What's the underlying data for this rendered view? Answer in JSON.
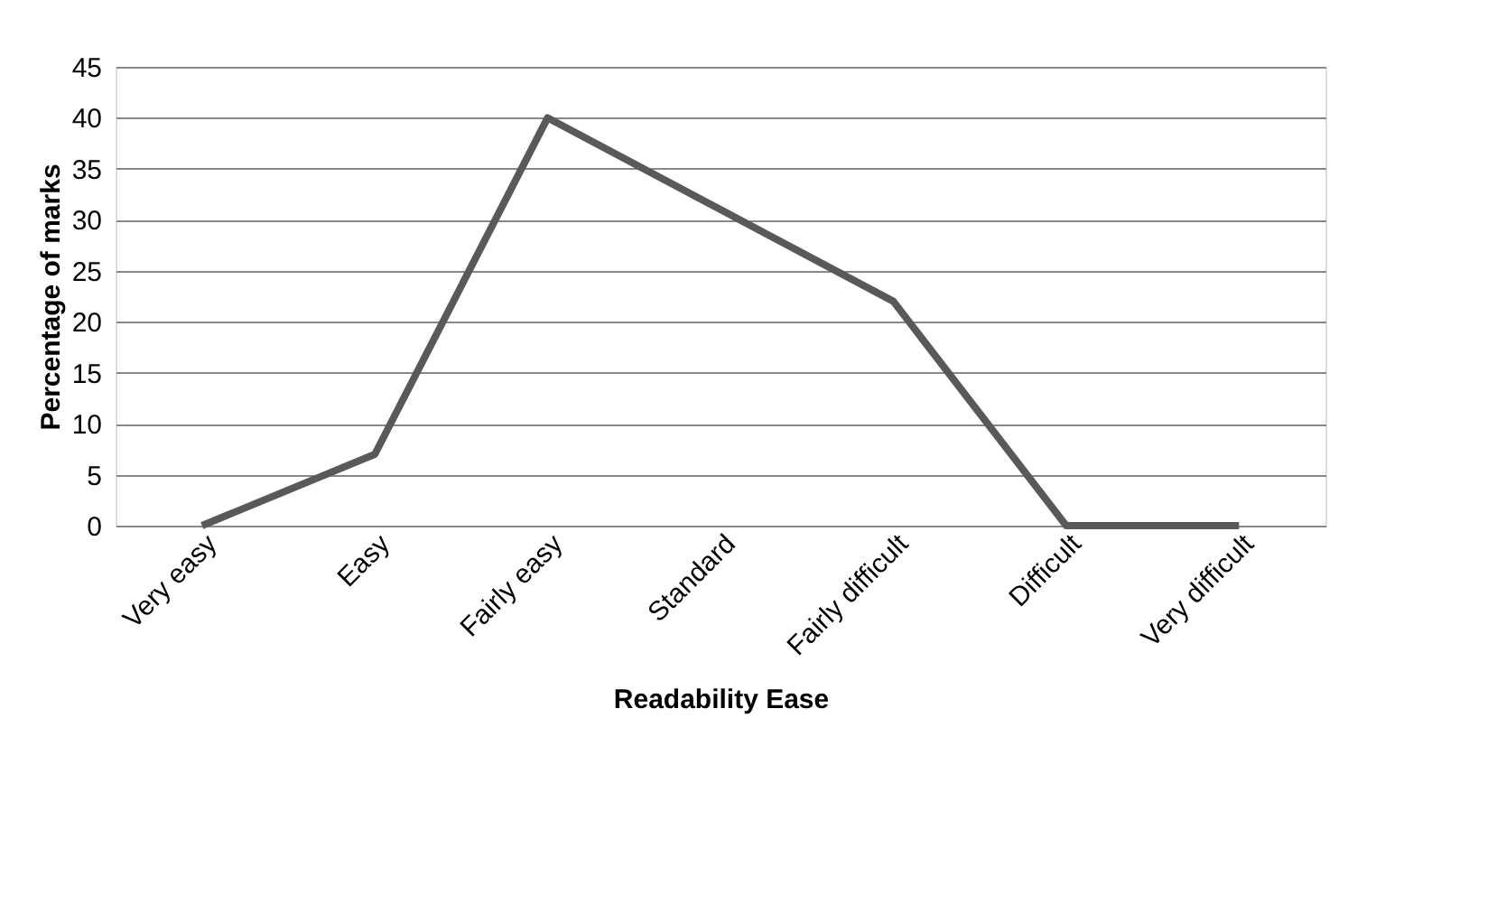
{
  "chart_data": {
    "type": "line",
    "xlabel": "Readability Ease",
    "ylabel": "Percentage of marks",
    "categories": [
      "Very easy",
      "Easy",
      "Fairly easy",
      "Standard",
      "Fairly difficult",
      "Difficult",
      "Very difficult"
    ],
    "series": [
      {
        "color": "#595959",
        "values": [
          0,
          7,
          40,
          31,
          22,
          0,
          0
        ]
      }
    ],
    "ylim": [
      0,
      45
    ],
    "yticks": [
      0,
      5,
      10,
      15,
      20,
      25,
      30,
      35,
      40,
      45
    ],
    "grid": "y",
    "marker": "none",
    "line_style": "solid"
  }
}
